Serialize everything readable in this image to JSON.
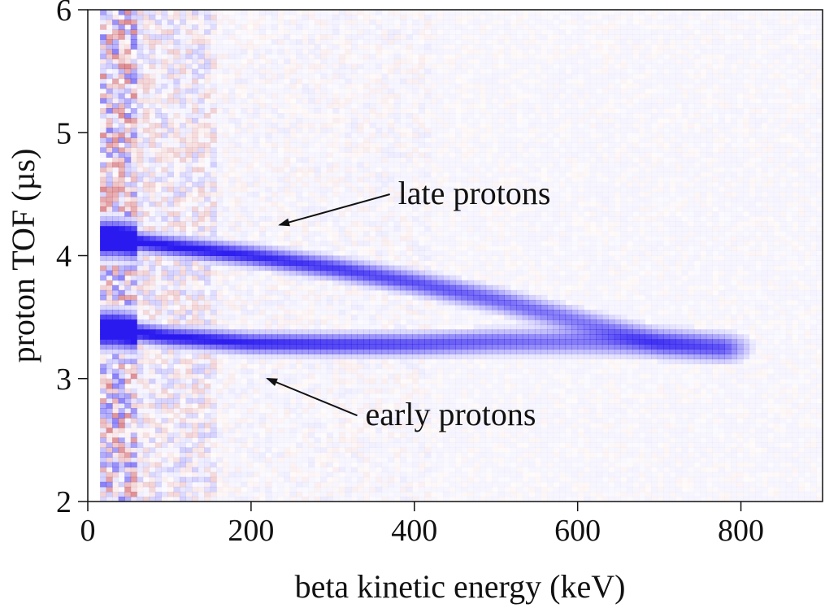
{
  "chart_data": {
    "type": "heatmap",
    "title": "",
    "xlabel": "beta kinetic energy (keV)",
    "ylabel": "proton TOF (µs)",
    "xlim": [
      0,
      900
    ],
    "ylim": [
      2,
      6
    ],
    "x_ticks": [
      0,
      200,
      400,
      600,
      800
    ],
    "x_tick_labels": [
      "0",
      "200",
      "400",
      "600",
      "800"
    ],
    "y_ticks": [
      2,
      3,
      4,
      5,
      6
    ],
    "y_tick_labels": [
      "2",
      "3",
      "4",
      "5",
      "6"
    ],
    "grid": false,
    "colors": {
      "positive": "#2a1aef",
      "negative": "#c0303a",
      "axis": "#111111"
    },
    "bands": [
      {
        "name": "late protons",
        "points": [
          {
            "x": 35,
            "y": 4.14
          },
          {
            "x": 100,
            "y": 4.08
          },
          {
            "x": 200,
            "y": 4.0
          },
          {
            "x": 300,
            "y": 3.9
          },
          {
            "x": 400,
            "y": 3.78
          },
          {
            "x": 500,
            "y": 3.64
          },
          {
            "x": 600,
            "y": 3.47
          },
          {
            "x": 700,
            "y": 3.3
          },
          {
            "x": 780,
            "y": 3.25
          }
        ]
      },
      {
        "name": "early protons",
        "points": [
          {
            "x": 35,
            "y": 3.4
          },
          {
            "x": 100,
            "y": 3.34
          },
          {
            "x": 200,
            "y": 3.29
          },
          {
            "x": 300,
            "y": 3.28
          },
          {
            "x": 400,
            "y": 3.28
          },
          {
            "x": 500,
            "y": 3.3
          },
          {
            "x": 600,
            "y": 3.3
          },
          {
            "x": 700,
            "y": 3.28
          },
          {
            "x": 780,
            "y": 3.25
          }
        ]
      }
    ],
    "annotations": [
      {
        "text": "late protons",
        "text_x": 380,
        "text_y": 4.42,
        "arrow_to_x": 235,
        "arrow_to_y": 4.25
      },
      {
        "text": "early protons",
        "text_x": 340,
        "text_y": 2.62,
        "arrow_to_x": 220,
        "arrow_to_y": 3.0
      }
    ]
  }
}
